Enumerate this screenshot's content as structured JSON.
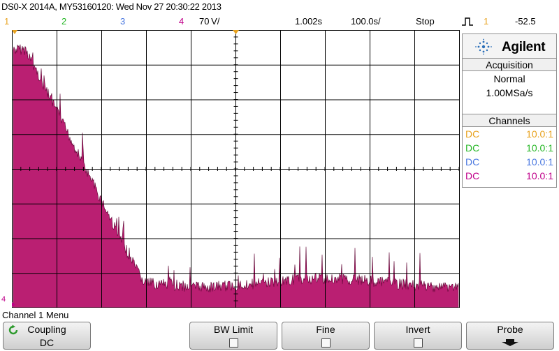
{
  "header": {
    "title": "DS0-X 2014A, MY53160120: Wed Nov 27 20:30:22 2013"
  },
  "status": {
    "ch1": "1",
    "ch2": "2",
    "ch3": "3",
    "ch4": "4",
    "vertical_scale": "70 V/",
    "time_scale": "1.002s",
    "time_offset": "100.0s/",
    "run_state": "Stop",
    "trigger_source": "1",
    "trigger_level": "-52.5"
  },
  "brand": {
    "name": "Agilent"
  },
  "acquisition": {
    "title": "Acquisition",
    "mode": "Normal",
    "rate": "1.00MSa/s"
  },
  "channels": {
    "title": "Channels",
    "rows": [
      {
        "coupling": "DC",
        "probe": "10.0:1",
        "color": "#e8a21e"
      },
      {
        "coupling": "DC",
        "probe": "10.0:1",
        "color": "#28b828"
      },
      {
        "coupling": "DC",
        "probe": "10.0:1",
        "color": "#4a78e0"
      },
      {
        "coupling": "DC",
        "probe": "10.0:1",
        "color": "#c0008a"
      }
    ]
  },
  "menu": {
    "title": "Channel 1 Menu",
    "coupling": {
      "label": "Coupling",
      "value": "DC"
    },
    "bw_limit": {
      "label": "BW Limit"
    },
    "fine": {
      "label": "Fine"
    },
    "invert": {
      "label": "Invert"
    },
    "probe": {
      "label": "Probe"
    }
  },
  "trace": {
    "color": "#b0005e",
    "channel_marker": "4"
  }
}
